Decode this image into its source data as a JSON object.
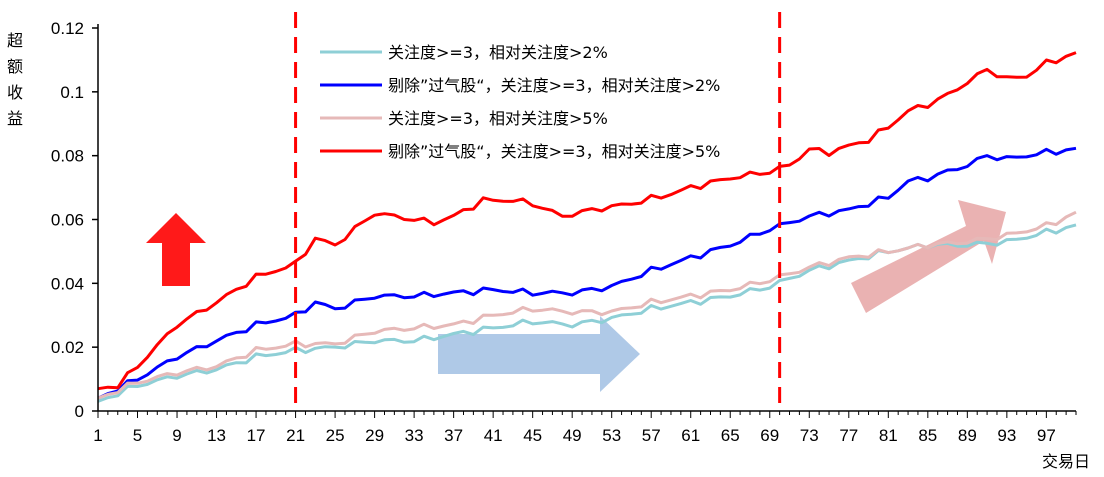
{
  "chart_data": {
    "type": "line",
    "title": "",
    "ylabel": "超额收益",
    "xlabel": "交易日",
    "ylim": [
      0,
      0.12
    ],
    "yticks": [
      0,
      0.02,
      0.04,
      0.06,
      0.08,
      0.1,
      0.12
    ],
    "ytick_labels": [
      "0",
      "0.02",
      "0.04",
      "0.06",
      "0.08",
      "0.1",
      "0.12"
    ],
    "xlim": [
      1,
      100
    ],
    "xticks": [
      1,
      5,
      9,
      13,
      17,
      21,
      25,
      29,
      33,
      37,
      41,
      45,
      49,
      53,
      57,
      61,
      65,
      69,
      73,
      77,
      81,
      85,
      89,
      93,
      97
    ],
    "legend_position": "top-center",
    "grid": false,
    "vlines": [
      {
        "x": 21,
        "color": "#ff0000",
        "style": "dashed"
      },
      {
        "x": 70,
        "color": "#ff0000",
        "style": "dashed"
      }
    ],
    "arrows": [
      {
        "direction": "up",
        "color": "#ff0000"
      },
      {
        "direction": "right",
        "color": "#a6c3e4"
      },
      {
        "direction": "up-right",
        "color": "#e8aaaa"
      }
    ],
    "series": [
      {
        "name": "关注度>=3，相对关注度>2%",
        "color": "#8ecfd6",
        "knots": [
          [
            1,
            0.003
          ],
          [
            5,
            0.008
          ],
          [
            9,
            0.011
          ],
          [
            13,
            0.013
          ],
          [
            17,
            0.017
          ],
          [
            21,
            0.019
          ],
          [
            25,
            0.02
          ],
          [
            29,
            0.022
          ],
          [
            33,
            0.022
          ],
          [
            37,
            0.024
          ],
          [
            41,
            0.026
          ],
          [
            45,
            0.028
          ],
          [
            49,
            0.027
          ],
          [
            53,
            0.029
          ],
          [
            57,
            0.032
          ],
          [
            61,
            0.034
          ],
          [
            65,
            0.036
          ],
          [
            69,
            0.039
          ],
          [
            73,
            0.044
          ],
          [
            77,
            0.047
          ],
          [
            81,
            0.05
          ],
          [
            85,
            0.052
          ],
          [
            89,
            0.052
          ],
          [
            93,
            0.053
          ],
          [
            97,
            0.056
          ],
          [
            100,
            0.058
          ]
        ]
      },
      {
        "name": "剔除”过气股“，关注度>=3，相对关注度>2%",
        "color": "#0000ff",
        "knots": [
          [
            1,
            0.004
          ],
          [
            5,
            0.01
          ],
          [
            9,
            0.017
          ],
          [
            13,
            0.022
          ],
          [
            17,
            0.027
          ],
          [
            21,
            0.03
          ],
          [
            23,
            0.034
          ],
          [
            25,
            0.032
          ],
          [
            29,
            0.036
          ],
          [
            33,
            0.036
          ],
          [
            37,
            0.037
          ],
          [
            41,
            0.038
          ],
          [
            45,
            0.037
          ],
          [
            49,
            0.037
          ],
          [
            53,
            0.039
          ],
          [
            57,
            0.044
          ],
          [
            61,
            0.048
          ],
          [
            65,
            0.052
          ],
          [
            69,
            0.057
          ],
          [
            73,
            0.061
          ],
          [
            77,
            0.063
          ],
          [
            81,
            0.067
          ],
          [
            83,
            0.072
          ],
          [
            85,
            0.073
          ],
          [
            89,
            0.077
          ],
          [
            91,
            0.08
          ],
          [
            93,
            0.079
          ],
          [
            97,
            0.081
          ],
          [
            100,
            0.082
          ]
        ]
      },
      {
        "name": "关注度>=3，相对关注度>5%",
        "color": "#e6b9b8",
        "knots": [
          [
            1,
            0.004
          ],
          [
            5,
            0.009
          ],
          [
            9,
            0.012
          ],
          [
            13,
            0.014
          ],
          [
            17,
            0.019
          ],
          [
            21,
            0.021
          ],
          [
            25,
            0.021
          ],
          [
            29,
            0.025
          ],
          [
            33,
            0.026
          ],
          [
            37,
            0.027
          ],
          [
            41,
            0.03
          ],
          [
            45,
            0.032
          ],
          [
            49,
            0.031
          ],
          [
            53,
            0.031
          ],
          [
            57,
            0.034
          ],
          [
            61,
            0.036
          ],
          [
            65,
            0.038
          ],
          [
            69,
            0.041
          ],
          [
            73,
            0.045
          ],
          [
            77,
            0.048
          ],
          [
            81,
            0.05
          ],
          [
            85,
            0.052
          ],
          [
            89,
            0.053
          ],
          [
            93,
            0.055
          ],
          [
            97,
            0.058
          ],
          [
            100,
            0.062
          ]
        ]
      },
      {
        "name": "剔除”过气股“，关注度>=3，相对关注度>5%",
        "color": "#ff0000",
        "knots": [
          [
            1,
            0.007
          ],
          [
            3,
            0.008
          ],
          [
            5,
            0.014
          ],
          [
            9,
            0.027
          ],
          [
            13,
            0.034
          ],
          [
            17,
            0.042
          ],
          [
            21,
            0.046
          ],
          [
            23,
            0.054
          ],
          [
            25,
            0.052
          ],
          [
            29,
            0.062
          ],
          [
            33,
            0.06
          ],
          [
            35,
            0.059
          ],
          [
            37,
            0.061
          ],
          [
            40,
            0.066
          ],
          [
            43,
            0.066
          ],
          [
            45,
            0.065
          ],
          [
            48,
            0.061
          ],
          [
            51,
            0.063
          ],
          [
            55,
            0.065
          ],
          [
            59,
            0.068
          ],
          [
            61,
            0.07
          ],
          [
            65,
            0.073
          ],
          [
            69,
            0.075
          ],
          [
            71,
            0.077
          ],
          [
            73,
            0.082
          ],
          [
            75,
            0.081
          ],
          [
            79,
            0.085
          ],
          [
            81,
            0.089
          ],
          [
            83,
            0.094
          ],
          [
            85,
            0.096
          ],
          [
            87,
            0.099
          ],
          [
            89,
            0.103
          ],
          [
            91,
            0.107
          ],
          [
            93,
            0.104
          ],
          [
            95,
            0.105
          ],
          [
            97,
            0.109
          ],
          [
            100,
            0.112
          ]
        ]
      }
    ]
  }
}
